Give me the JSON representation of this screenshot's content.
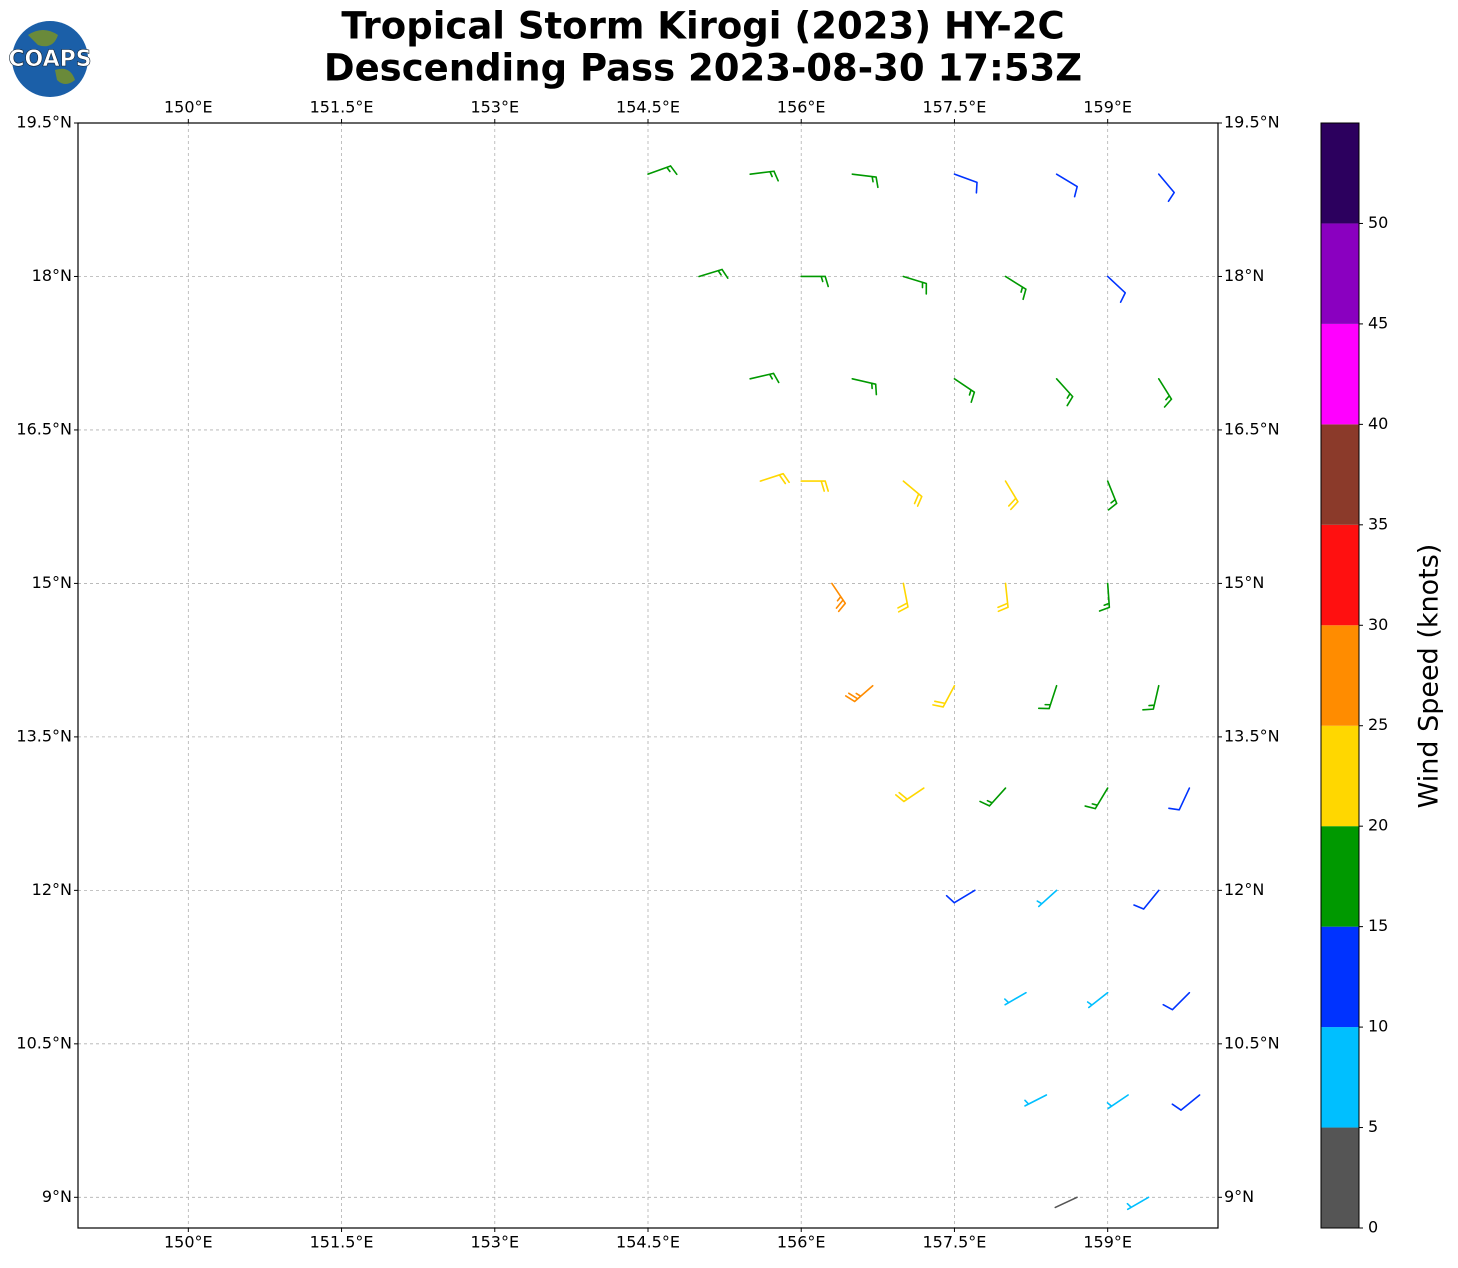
{
  "logo": "COAPS",
  "chart_data": {
    "type": "barbs",
    "title": "Tropical Storm Kirogi (2023) HY-2C",
    "subtitle": "Descending Pass 2023-08-30 17:53Z",
    "xlim": [
      148.92,
      160.08
    ],
    "ylim": [
      8.7,
      19.5
    ],
    "xticks": [
      {
        "value": 150,
        "label": "150°E"
      },
      {
        "value": 151.5,
        "label": "151.5°E"
      },
      {
        "value": 153,
        "label": "153°E"
      },
      {
        "value": 154.5,
        "label": "154.5°E"
      },
      {
        "value": 156,
        "label": "156°E"
      },
      {
        "value": 157.5,
        "label": "157.5°E"
      },
      {
        "value": 159,
        "label": "159°E"
      }
    ],
    "yticks": [
      {
        "value": 9,
        "label": "9°N"
      },
      {
        "value": 10.5,
        "label": "10.5°N"
      },
      {
        "value": 12,
        "label": "12°N"
      },
      {
        "value": 13.5,
        "label": "13.5°N"
      },
      {
        "value": 15,
        "label": "15°N"
      },
      {
        "value": 16.5,
        "label": "16.5°N"
      },
      {
        "value": 18,
        "label": "18°N"
      },
      {
        "value": 19.5,
        "label": "19.5°N"
      }
    ],
    "grid": true,
    "barbs": {
      "lon": [
        154.5,
        155.5,
        156.5,
        157.5,
        158.5,
        159.5,
        155,
        156,
        157,
        158,
        159,
        155.5,
        156.5,
        157.5,
        158.5,
        159.5,
        155.6,
        156,
        157,
        158,
        159,
        156.3,
        157,
        158,
        159,
        156.7,
        157.5,
        158.5,
        159.5,
        157.2,
        158,
        159,
        159.8,
        157.7,
        158.5,
        159.5,
        158.2,
        159,
        159.8,
        158.4,
        159.2,
        159.9,
        158.7,
        159.4
      ],
      "lat": [
        19,
        19,
        19,
        19,
        19,
        19,
        18,
        18,
        18,
        18,
        18,
        17,
        17,
        17,
        17,
        17,
        16,
        16,
        16,
        16,
        16,
        15,
        15,
        15,
        15,
        14,
        14,
        14,
        14,
        13,
        13,
        13,
        13,
        12,
        12,
        12,
        11,
        11,
        11,
        10,
        10,
        10,
        9,
        9
      ],
      "speed": [
        16,
        16,
        17,
        14,
        12,
        12,
        17,
        17,
        17,
        17,
        13,
        17,
        18,
        18,
        17,
        17,
        22,
        22,
        23,
        21,
        18,
        28,
        24,
        22,
        19,
        27,
        22,
        17,
        17,
        22,
        17,
        15,
        13,
        14,
        8,
        13,
        8,
        7,
        12,
        8,
        8,
        12,
        4,
        8
      ],
      "direction": [
        70,
        83,
        97,
        110,
        121,
        140,
        73,
        90,
        107,
        122,
        133,
        77,
        103,
        124,
        138,
        148,
        72,
        90,
        130,
        149,
        158,
        146,
        169,
        174,
        176,
        229,
        208,
        198,
        193,
        236,
        222,
        211,
        205,
        239,
        228,
        219,
        240,
        232,
        225,
        243,
        236,
        231,
        245,
        240
      ]
    },
    "colorbar": {
      "label": "Wind Speed (knots)",
      "bounds": [
        0,
        5,
        10,
        15,
        20,
        25,
        30,
        35,
        40,
        45,
        50,
        55
      ],
      "colors": [
        "#555555",
        "#00bfff",
        "#0033ff",
        "#009900",
        "#ffd700",
        "#ff8c00",
        "#ff1010",
        "#8b3a2a",
        "#ff00ff",
        "#8a00c0",
        "#2c005e"
      ],
      "ticks": [
        0,
        5,
        10,
        15,
        20,
        25,
        30,
        35,
        40,
        45,
        50
      ]
    }
  }
}
